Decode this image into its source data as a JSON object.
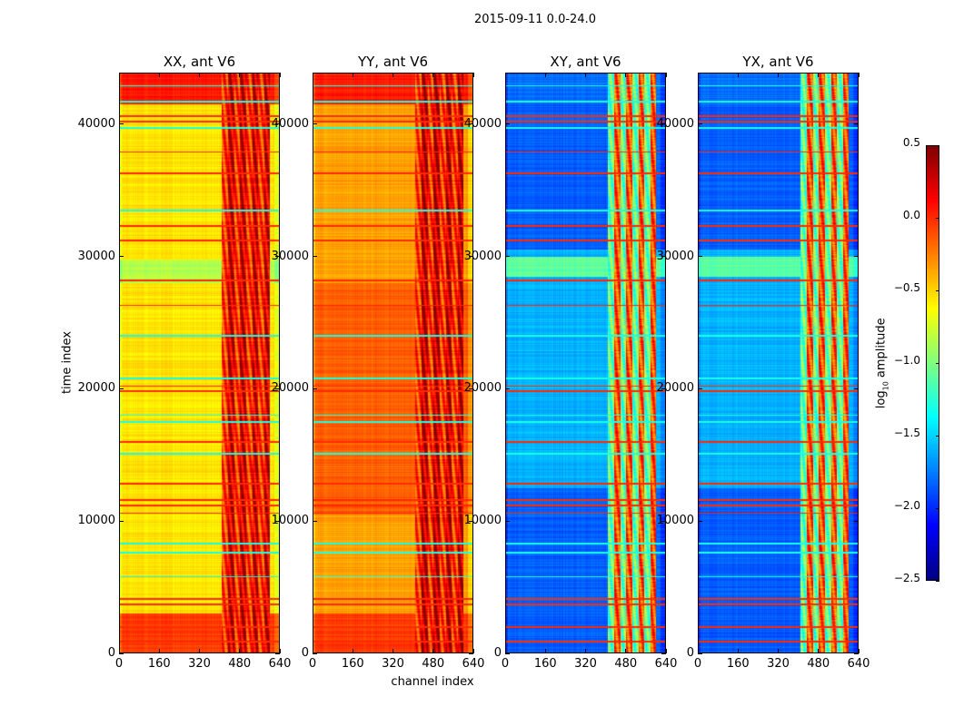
{
  "chart_data": {
    "type": "heatmap",
    "title": "2015-09-11 0.0-24.0",
    "xlabel": "channel index",
    "ylabel": "time index",
    "xlim": [
      0,
      640
    ],
    "ylim": [
      0,
      43900
    ],
    "xticks": [
      "0",
      "160",
      "320",
      "480",
      "640"
    ],
    "xtick_values": [
      0,
      160,
      320,
      480,
      640
    ],
    "yticks": [
      "0",
      "10000",
      "20000",
      "30000",
      "40000"
    ],
    "ytick_values": [
      0,
      10000,
      20000,
      30000,
      40000
    ],
    "colorbar": {
      "label_prefix": "log",
      "label_sub": "10",
      "label_suffix": " amplitude",
      "colormap": "jet",
      "range": [
        -2.5,
        0.5
      ],
      "ticks": [
        "0.5",
        "0.0",
        "−0.5",
        "−1.0",
        "−1.5",
        "−2.0",
        "−2.5"
      ],
      "tick_values": [
        0.5,
        0.0,
        -0.5,
        -1.0,
        -1.5,
        -2.0,
        -2.5
      ]
    },
    "panels": [
      {
        "title": "XX, ant V6",
        "background": -0.55,
        "stripe_region": [
          410,
          600
        ],
        "stripe_values": [
          -0.05,
          0.25
        ],
        "bands": [
          {
            "t": [
              0,
              3000
            ],
            "v": -0.05
          },
          {
            "t": [
              41500,
              43900
            ],
            "v": 0.05
          },
          {
            "t": [
              28000,
              29800
            ],
            "v": -0.85
          }
        ]
      },
      {
        "title": "YY, ant V6",
        "background": -0.35,
        "stripe_region": [
          410,
          600
        ],
        "stripe_values": [
          -0.05,
          0.3
        ],
        "bands": [
          {
            "t": [
              0,
              3000
            ],
            "v": -0.05
          },
          {
            "t": [
              41500,
              43900
            ],
            "v": 0.05
          },
          {
            "t": [
              10500,
              28000
            ],
            "v": -0.15
          }
        ]
      },
      {
        "title": "XY, ant V6",
        "background": -1.6,
        "stripe_region": [
          410,
          600
        ],
        "stripe_values": [
          -1.1,
          -0.1
        ],
        "bands": [
          {
            "t": [
              0,
              12500
            ],
            "v": -1.85
          },
          {
            "t": [
              30500,
              41500
            ],
            "v": -1.85
          },
          {
            "t": [
              28500,
              30000
            ],
            "v": -1.1
          },
          {
            "t": [
              41500,
              43900
            ],
            "v": -1.8
          }
        ]
      },
      {
        "title": "YX, ant V6",
        "background": -1.6,
        "stripe_region": [
          410,
          600
        ],
        "stripe_values": [
          -1.1,
          -0.1
        ],
        "bands": [
          {
            "t": [
              0,
              12500
            ],
            "v": -1.85
          },
          {
            "t": [
              30500,
              41500
            ],
            "v": -1.85
          },
          {
            "t": [
              28500,
              30000
            ],
            "v": -1.1
          },
          {
            "t": [
              41500,
              43900
            ],
            "v": -1.8
          }
        ]
      }
    ],
    "flag_lines": [
      {
        "t": 900,
        "v": 0.0
      },
      {
        "t": 2000,
        "v": 0.0
      },
      {
        "t": 3700,
        "v": 0.0
      },
      {
        "t": 4100,
        "v": 0.0
      },
      {
        "t": 5800,
        "v": -1.3
      },
      {
        "t": 7600,
        "v": -1.3
      },
      {
        "t": 8300,
        "v": -1.3
      },
      {
        "t": 10600,
        "v": 0.0
      },
      {
        "t": 11200,
        "v": 0.0
      },
      {
        "t": 11600,
        "v": 0.0
      },
      {
        "t": 12800,
        "v": 0.0
      },
      {
        "t": 15100,
        "v": -1.3
      },
      {
        "t": 16000,
        "v": 0.0
      },
      {
        "t": 17500,
        "v": -1.3
      },
      {
        "t": 18000,
        "v": -1.3
      },
      {
        "t": 19800,
        "v": 0.0
      },
      {
        "t": 20200,
        "v": 0.0
      },
      {
        "t": 20800,
        "v": -1.3
      },
      {
        "t": 24000,
        "v": -1.3
      },
      {
        "t": 26300,
        "v": 0.0
      },
      {
        "t": 28200,
        "v": 0.0
      },
      {
        "t": 31200,
        "v": 0.0
      },
      {
        "t": 32300,
        "v": 0.0
      },
      {
        "t": 33500,
        "v": -1.3
      },
      {
        "t": 36300,
        "v": 0.0
      },
      {
        "t": 37900,
        "v": 0.0
      },
      {
        "t": 39700,
        "v": -1.3
      },
      {
        "t": 40200,
        "v": 0.0
      },
      {
        "t": 40600,
        "v": 0.0
      },
      {
        "t": 41700,
        "v": -1.3
      },
      {
        "t": 42900,
        "v": -1.3
      }
    ]
  }
}
